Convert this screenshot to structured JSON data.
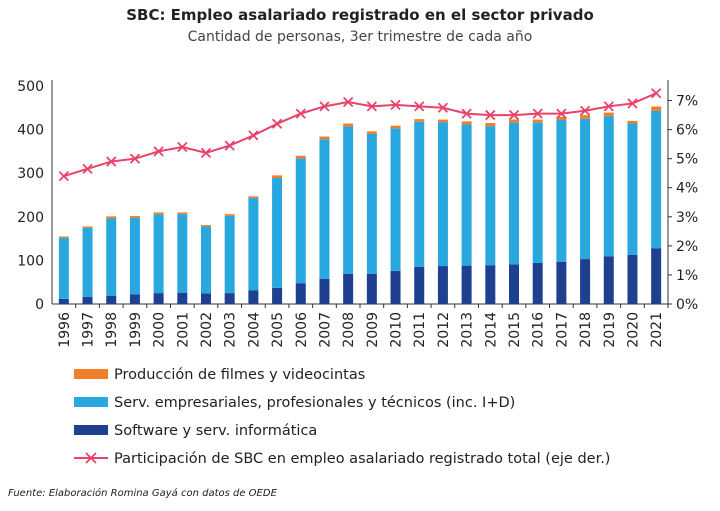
{
  "header": {
    "title": "SBC: Empleo asalariado registrado en el sector privado",
    "subtitle": "Cantidad de personas, 3er trimestre de cada año"
  },
  "source": "Fuente: Elaboración Romina Gayá con datos de OEDE",
  "colors": {
    "films": "#f07f2a",
    "services": "#29a8e0",
    "software": "#1f3f8f",
    "line": "#e8436b"
  },
  "chart_data": {
    "type": "bar",
    "stacked": true,
    "categories": [
      "1996",
      "1997",
      "1998",
      "1999",
      "2000",
      "2001",
      "2002",
      "2003",
      "2004",
      "2005",
      "2006",
      "2007",
      "2008",
      "2009",
      "2010",
      "2011",
      "2012",
      "2013",
      "2014",
      "2015",
      "2016",
      "2017",
      "2018",
      "2019",
      "2020",
      "2021"
    ],
    "series": [
      {
        "name": "Software y serv. informática",
        "values": [
          12,
          16,
          19,
          22,
          25,
          26,
          24,
          25,
          31,
          37,
          47,
          58,
          69,
          69,
          76,
          85,
          87,
          88,
          89,
          91,
          94,
          97,
          103,
          109,
          113,
          128
        ]
      },
      {
        "name": "Serv. empresariales, profesionales y técnicos (inc. I+D)",
        "values": [
          140,
          159,
          177,
          176,
          181,
          180,
          154,
          177,
          212,
          252,
          287,
          320,
          338,
          321,
          327,
          333,
          330,
          324,
          319,
          325,
          322,
          325,
          322,
          322,
          301,
          315
        ]
      },
      {
        "name": "Producción de filmes y videocintas",
        "values": [
          3,
          3,
          5,
          4,
          4,
          4,
          3,
          4,
          4,
          6,
          6,
          6,
          7,
          6,
          6,
          6,
          6,
          7,
          7,
          7,
          7,
          7,
          8,
          8,
          6,
          10
        ]
      },
      {
        "name": "Participación de SBC en empleo asalariado registrado total (eje der.)",
        "axis": "right",
        "type": "line",
        "values": [
          4.4,
          4.65,
          4.9,
          5.0,
          5.25,
          5.4,
          5.2,
          5.45,
          5.8,
          6.2,
          6.55,
          6.8,
          6.95,
          6.8,
          6.85,
          6.8,
          6.75,
          6.55,
          6.5,
          6.5,
          6.55,
          6.55,
          6.65,
          6.8,
          6.9,
          7.25
        ]
      }
    ],
    "y_left": {
      "min": 0,
      "max": 500,
      "ticks": [
        "0",
        "100",
        "200",
        "300",
        "400",
        "500"
      ]
    },
    "y_right": {
      "min": 0,
      "max": 7.5,
      "ticks": [
        "0%",
        "1%",
        "2%",
        "3%",
        "4%",
        "5%",
        "6%",
        "7%"
      ]
    },
    "legend_position": "bottom",
    "grid": false
  }
}
